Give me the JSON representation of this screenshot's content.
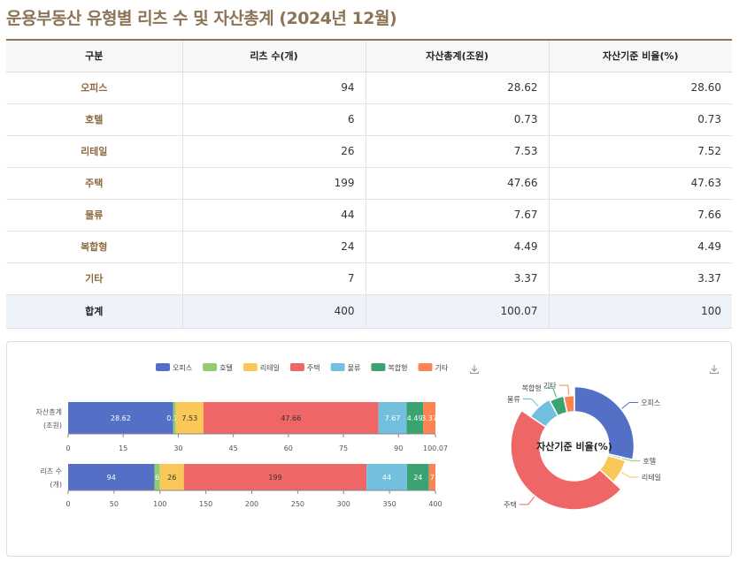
{
  "page": {
    "title": "운용부동산 유형별 리츠 수 및 자산총계 (2024년 12월)"
  },
  "table": {
    "headers": [
      "구분",
      "리츠 수(개)",
      "자산총계(조원)",
      "자산기준 비율(%)"
    ],
    "rows": [
      {
        "category": "오피스",
        "count": "94",
        "assets": "28.62",
        "ratio": "28.60"
      },
      {
        "category": "호텔",
        "count": "6",
        "assets": "0.73",
        "ratio": "0.73"
      },
      {
        "category": "리테일",
        "count": "26",
        "assets": "7.53",
        "ratio": "7.52"
      },
      {
        "category": "주택",
        "count": "199",
        "assets": "47.66",
        "ratio": "47.63"
      },
      {
        "category": "물류",
        "count": "44",
        "assets": "7.67",
        "ratio": "7.66"
      },
      {
        "category": "복합형",
        "count": "24",
        "assets": "4.49",
        "ratio": "4.49"
      },
      {
        "category": "기타",
        "count": "7",
        "assets": "3.37",
        "ratio": "3.37"
      }
    ],
    "total": {
      "category": "합계",
      "count": "400",
      "assets": "100.07",
      "ratio": "100"
    }
  },
  "icons": {
    "download": "download-icon"
  },
  "chart_data": [
    {
      "type": "bar",
      "orientation": "horizontal",
      "stacked": true,
      "legend_position": "top",
      "categories": [
        "자산총계 (조원)",
        "리츠 수 (개)"
      ],
      "category_lines": [
        [
          "자산총계",
          "(조원)"
        ],
        [
          "리츠 수",
          "(개)"
        ]
      ],
      "series": [
        {
          "name": "오피스",
          "color": "#5470c6",
          "values": [
            28.62,
            94
          ]
        },
        {
          "name": "호텔",
          "color": "#91cc75",
          "values": [
            0.73,
            6
          ]
        },
        {
          "name": "리테일",
          "color": "#fac858",
          "values": [
            7.53,
            26
          ]
        },
        {
          "name": "주택",
          "color": "#ee6666",
          "values": [
            47.66,
            199
          ]
        },
        {
          "name": "물류",
          "color": "#73c0de",
          "values": [
            7.67,
            44
          ]
        },
        {
          "name": "복합형",
          "color": "#3ba272",
          "values": [
            4.49,
            24
          ]
        },
        {
          "name": "기타",
          "color": "#fc8452",
          "values": [
            3.37,
            7
          ]
        }
      ],
      "axes": [
        {
          "for": "자산총계 (조원)",
          "xlim": [
            0,
            100.07
          ],
          "ticks": [
            "0",
            "15",
            "30",
            "45",
            "60",
            "75",
            "90",
            "100.07"
          ],
          "tick_values": [
            0,
            15,
            30,
            45,
            60,
            75,
            90,
            100.07
          ]
        },
        {
          "for": "리츠 수 (개)",
          "xlim": [
            0,
            400
          ],
          "ticks": [
            "0",
            "50",
            "100",
            "150",
            "200",
            "250",
            "300",
            "350",
            "400"
          ],
          "tick_values": [
            0,
            50,
            100,
            150,
            200,
            250,
            300,
            350,
            400
          ]
        }
      ],
      "grid": false
    },
    {
      "type": "pie",
      "donut": true,
      "center_label": "자산기준 비율(%)",
      "labels": [
        "오피스",
        "호텔",
        "리테일",
        "주택",
        "물류",
        "복합형",
        "기타"
      ],
      "values": [
        28.6,
        0.73,
        7.52,
        47.63,
        7.66,
        4.49,
        3.37
      ],
      "colors": [
        "#5470c6",
        "#91cc75",
        "#fac858",
        "#ee6666",
        "#73c0de",
        "#3ba272",
        "#fc8452"
      ],
      "rose": true,
      "legend_position": "none"
    }
  ]
}
